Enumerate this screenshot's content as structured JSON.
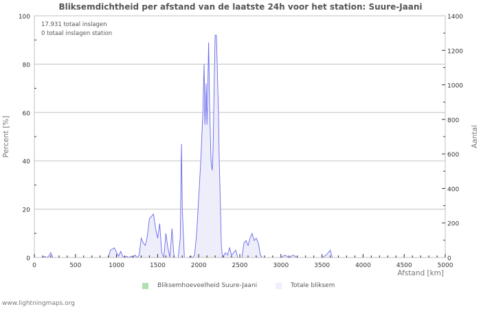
{
  "title": "Bliksemdichtheid per afstand van de laatste 24h voor het station: Suure-Jaani",
  "footer": "www.lightningmaps.org",
  "info": {
    "line1": "17.931 totaal inslagen",
    "line2": "0 totaal inslagen station"
  },
  "legend": [
    {
      "label": "Bliksemhoeveelheid Suure-Jaani",
      "color": "#b3e0b3"
    },
    {
      "label": "Totale bliksem",
      "color": "#eeeefc"
    }
  ],
  "colors": {
    "line": "#6666ee",
    "fill": "#eeeefa",
    "grid": "#c0c0c0",
    "axis": "#333333"
  },
  "chart_data": {
    "type": "area",
    "title": "Bliksemdichtheid per afstand van de laatste 24h voor het station: Suure-Jaani",
    "xlabel": "Afstand   [km]",
    "ylabel": "Percent   [%]",
    "y2label": "Aantal",
    "xlim": [
      0,
      5000
    ],
    "ylim": [
      0,
      100
    ],
    "y2lim": [
      0,
      1400
    ],
    "xticks": [
      "0",
      "500",
      "1000",
      "1500",
      "2000",
      "2500",
      "3000",
      "3500",
      "4000",
      "4500",
      "5000"
    ],
    "yticks": [
      "0",
      "20",
      "40",
      "60",
      "80",
      "100"
    ],
    "y2ticks": [
      "0",
      "200",
      "400",
      "600",
      "800",
      "1000",
      "1200",
      "1400"
    ],
    "grid": true,
    "legend_position": "bottom",
    "series": [
      {
        "name": "Bliksemhoeveelheid Suure-Jaani",
        "x": [],
        "values": []
      },
      {
        "name": "Totale bliksem",
        "unit": "percent",
        "x": [
          100,
          125,
          150,
          175,
          200,
          225,
          250,
          900,
          925,
          950,
          975,
          1000,
          1025,
          1050,
          1075,
          1100,
          1125,
          1150,
          1175,
          1200,
          1225,
          1250,
          1275,
          1300,
          1325,
          1350,
          1375,
          1400,
          1425,
          1450,
          1475,
          1500,
          1525,
          1550,
          1575,
          1600,
          1625,
          1650,
          1675,
          1700,
          1725,
          1750,
          1775,
          1790,
          1800,
          1825,
          1850,
          1875,
          1900,
          1925,
          1950,
          1975,
          2000,
          2025,
          2050,
          2065,
          2075,
          2090,
          2100,
          2110,
          2120,
          2135,
          2150,
          2165,
          2175,
          2190,
          2200,
          2215,
          2225,
          2240,
          2250,
          2265,
          2275,
          2290,
          2300,
          2325,
          2350,
          2375,
          2400,
          2425,
          2450,
          2475,
          2500,
          2525,
          2550,
          2575,
          2600,
          2625,
          2650,
          2675,
          2700,
          2725,
          2750,
          2775,
          2800,
          2825,
          2850,
          3000,
          3050,
          3100,
          3150,
          3200,
          3400,
          3450,
          3500,
          3550,
          3575,
          3600,
          3625,
          3650
        ],
        "values": [
          0,
          0.5,
          0,
          0.5,
          2,
          0,
          0,
          0,
          3,
          3.5,
          4,
          2,
          0.5,
          2.5,
          0.5,
          0,
          0.5,
          0,
          0.5,
          0,
          1,
          0,
          1,
          8,
          6,
          5,
          9,
          16,
          17,
          18,
          12,
          8,
          14,
          2,
          0,
          10,
          4,
          0,
          12,
          0,
          0,
          0,
          8,
          47,
          20,
          0,
          0,
          0,
          0.5,
          0,
          1,
          10,
          25,
          40,
          60,
          80,
          55,
          72,
          55,
          70,
          89,
          60,
          40,
          36,
          45,
          75,
          92,
          92,
          80,
          60,
          40,
          20,
          5,
          0,
          0.5,
          2,
          1,
          4,
          1,
          2,
          3,
          0,
          0,
          0,
          6,
          7,
          5,
          8,
          10,
          7,
          8,
          6,
          1,
          0,
          0,
          0,
          0,
          0,
          1,
          0,
          1,
          0,
          0,
          0,
          0,
          1,
          2,
          3,
          0,
          0
        ]
      }
    ]
  }
}
